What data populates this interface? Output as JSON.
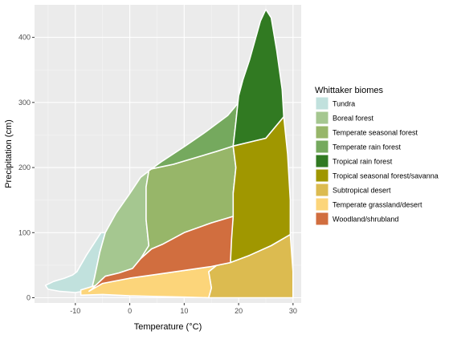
{
  "chart_data": {
    "type": "area",
    "title": "",
    "xlabel": "Temperature (°C)",
    "ylabel": "Precipitation (cm)",
    "xlim": [
      -17.5,
      31.5
    ],
    "ylim": [
      -8,
      450
    ],
    "x_ticks": [
      -10,
      0,
      10,
      20,
      30
    ],
    "x_tick_labels": [
      "-10",
      "0",
      "10",
      "20",
      "30"
    ],
    "y_ticks": [
      0,
      100,
      200,
      300,
      400
    ],
    "y_tick_labels": [
      "0",
      "100",
      "200",
      "300",
      "400"
    ],
    "grid": true,
    "panel_background": "#ebebeb",
    "legend": {
      "title": "Whittaker biomes",
      "position": "right"
    },
    "series": [
      {
        "name": "Tundra",
        "color": "#C1E1DD",
        "polygon": [
          [
            -9.7,
            40
          ],
          [
            -10.5,
            35
          ],
          [
            -12,
            30
          ],
          [
            -14,
            25
          ],
          [
            -15.5,
            19
          ],
          [
            -15,
            13
          ],
          [
            -13,
            10
          ],
          [
            -10,
            8
          ],
          [
            -8.5,
            10
          ],
          [
            -7,
            13
          ],
          [
            -6.5,
            30
          ],
          [
            -5.5,
            70
          ],
          [
            -4.5,
            100
          ],
          [
            -5.3,
            100
          ],
          [
            -8,
            65
          ]
        ]
      },
      {
        "name": "Boreal forest",
        "color": "#A5C790",
        "polygon": [
          [
            -4.5,
            100
          ],
          [
            -2.5,
            130
          ],
          [
            0,
            160
          ],
          [
            2,
            185
          ],
          [
            4,
            198
          ],
          [
            3.5,
            195
          ],
          [
            3,
            170
          ],
          [
            3,
            120
          ],
          [
            3.5,
            80
          ],
          [
            2,
            60
          ],
          [
            0.5,
            45
          ],
          [
            -2,
            38
          ],
          [
            -4.5,
            33
          ],
          [
            -7,
            13
          ],
          [
            -6.5,
            30
          ],
          [
            -5.5,
            70
          ]
        ]
      },
      {
        "name": "Temperate seasonal forest",
        "color": "#97B669",
        "polygon": [
          [
            4,
            198
          ],
          [
            8,
            205
          ],
          [
            12,
            215
          ],
          [
            16,
            225
          ],
          [
            19,
            233
          ],
          [
            19.5,
            200
          ],
          [
            19,
            160
          ],
          [
            19,
            125
          ],
          [
            15,
            115
          ],
          [
            10,
            100
          ],
          [
            6,
            82
          ],
          [
            4,
            75
          ],
          [
            2,
            60
          ],
          [
            3.5,
            80
          ],
          [
            3,
            120
          ],
          [
            3,
            170
          ],
          [
            3.5,
            195
          ]
        ]
      },
      {
        "name": "Temperate rain forest",
        "color": "#75A95E",
        "polygon": [
          [
            4,
            198
          ],
          [
            6,
            210
          ],
          [
            10,
            232
          ],
          [
            14,
            255
          ],
          [
            18,
            280
          ],
          [
            20,
            300
          ],
          [
            20.8,
            335
          ],
          [
            20.5,
            330
          ],
          [
            20,
            310
          ],
          [
            19.5,
            270
          ],
          [
            19,
            233
          ],
          [
            16,
            225
          ],
          [
            12,
            215
          ],
          [
            8,
            205
          ]
        ]
      },
      {
        "name": "Tropical rain forest",
        "color": "#317A22",
        "polygon": [
          [
            20.8,
            335
          ],
          [
            22,
            365
          ],
          [
            23,
            395
          ],
          [
            24,
            425
          ],
          [
            25,
            443
          ],
          [
            26,
            430
          ],
          [
            27,
            380
          ],
          [
            28,
            320
          ],
          [
            28.3,
            278
          ],
          [
            25,
            245
          ],
          [
            21,
            237
          ],
          [
            19,
            233
          ],
          [
            19.5,
            270
          ],
          [
            20,
            310
          ]
        ]
      },
      {
        "name": "Tropical seasonal forest/savanna",
        "color": "#A09700",
        "polygon": [
          [
            19,
            233
          ],
          [
            21,
            237
          ],
          [
            25,
            245
          ],
          [
            28.3,
            278
          ],
          [
            29,
            220
          ],
          [
            29.5,
            150
          ],
          [
            29.5,
            97
          ],
          [
            26,
            80
          ],
          [
            22,
            65
          ],
          [
            18.5,
            54
          ],
          [
            18.5,
            80
          ],
          [
            19,
            125
          ],
          [
            19,
            160
          ],
          [
            19.5,
            200
          ]
        ]
      },
      {
        "name": "Subtropical desert",
        "color": "#DCBB50",
        "polygon": [
          [
            14.5,
            0
          ],
          [
            30,
            0
          ],
          [
            30,
            40
          ],
          [
            29.5,
            97
          ],
          [
            26,
            80
          ],
          [
            22,
            65
          ],
          [
            18.5,
            54
          ],
          [
            16,
            50
          ],
          [
            14.5,
            40
          ],
          [
            15,
            15
          ]
        ]
      },
      {
        "name": "Temperate grassland/desert",
        "color": "#FCD57A",
        "polygon": [
          [
            -9,
            4
          ],
          [
            -5,
            5
          ],
          [
            0,
            3
          ],
          [
            5,
            2
          ],
          [
            10,
            1
          ],
          [
            14.5,
            0
          ],
          [
            15,
            15
          ],
          [
            14.5,
            40
          ],
          [
            16,
            50
          ],
          [
            18.5,
            54
          ],
          [
            15,
            48
          ],
          [
            10,
            42
          ],
          [
            5,
            36
          ],
          [
            0,
            30
          ],
          [
            -5,
            22
          ],
          [
            -9,
            12
          ]
        ]
      },
      {
        "name": "Woodland/shrubland",
        "color": "#D16E3F",
        "polygon": [
          [
            -7.5,
            10
          ],
          [
            -5,
            22
          ],
          [
            0,
            30
          ],
          [
            5,
            36
          ],
          [
            10,
            42
          ],
          [
            15,
            48
          ],
          [
            18.5,
            54
          ],
          [
            18.7,
            90
          ],
          [
            19,
            125
          ],
          [
            15,
            115
          ],
          [
            10,
            100
          ],
          [
            6,
            82
          ],
          [
            4,
            75
          ],
          [
            2,
            60
          ],
          [
            0.5,
            45
          ],
          [
            -2,
            38
          ],
          [
            -4.5,
            33
          ],
          [
            -7,
            13
          ]
        ]
      }
    ]
  }
}
